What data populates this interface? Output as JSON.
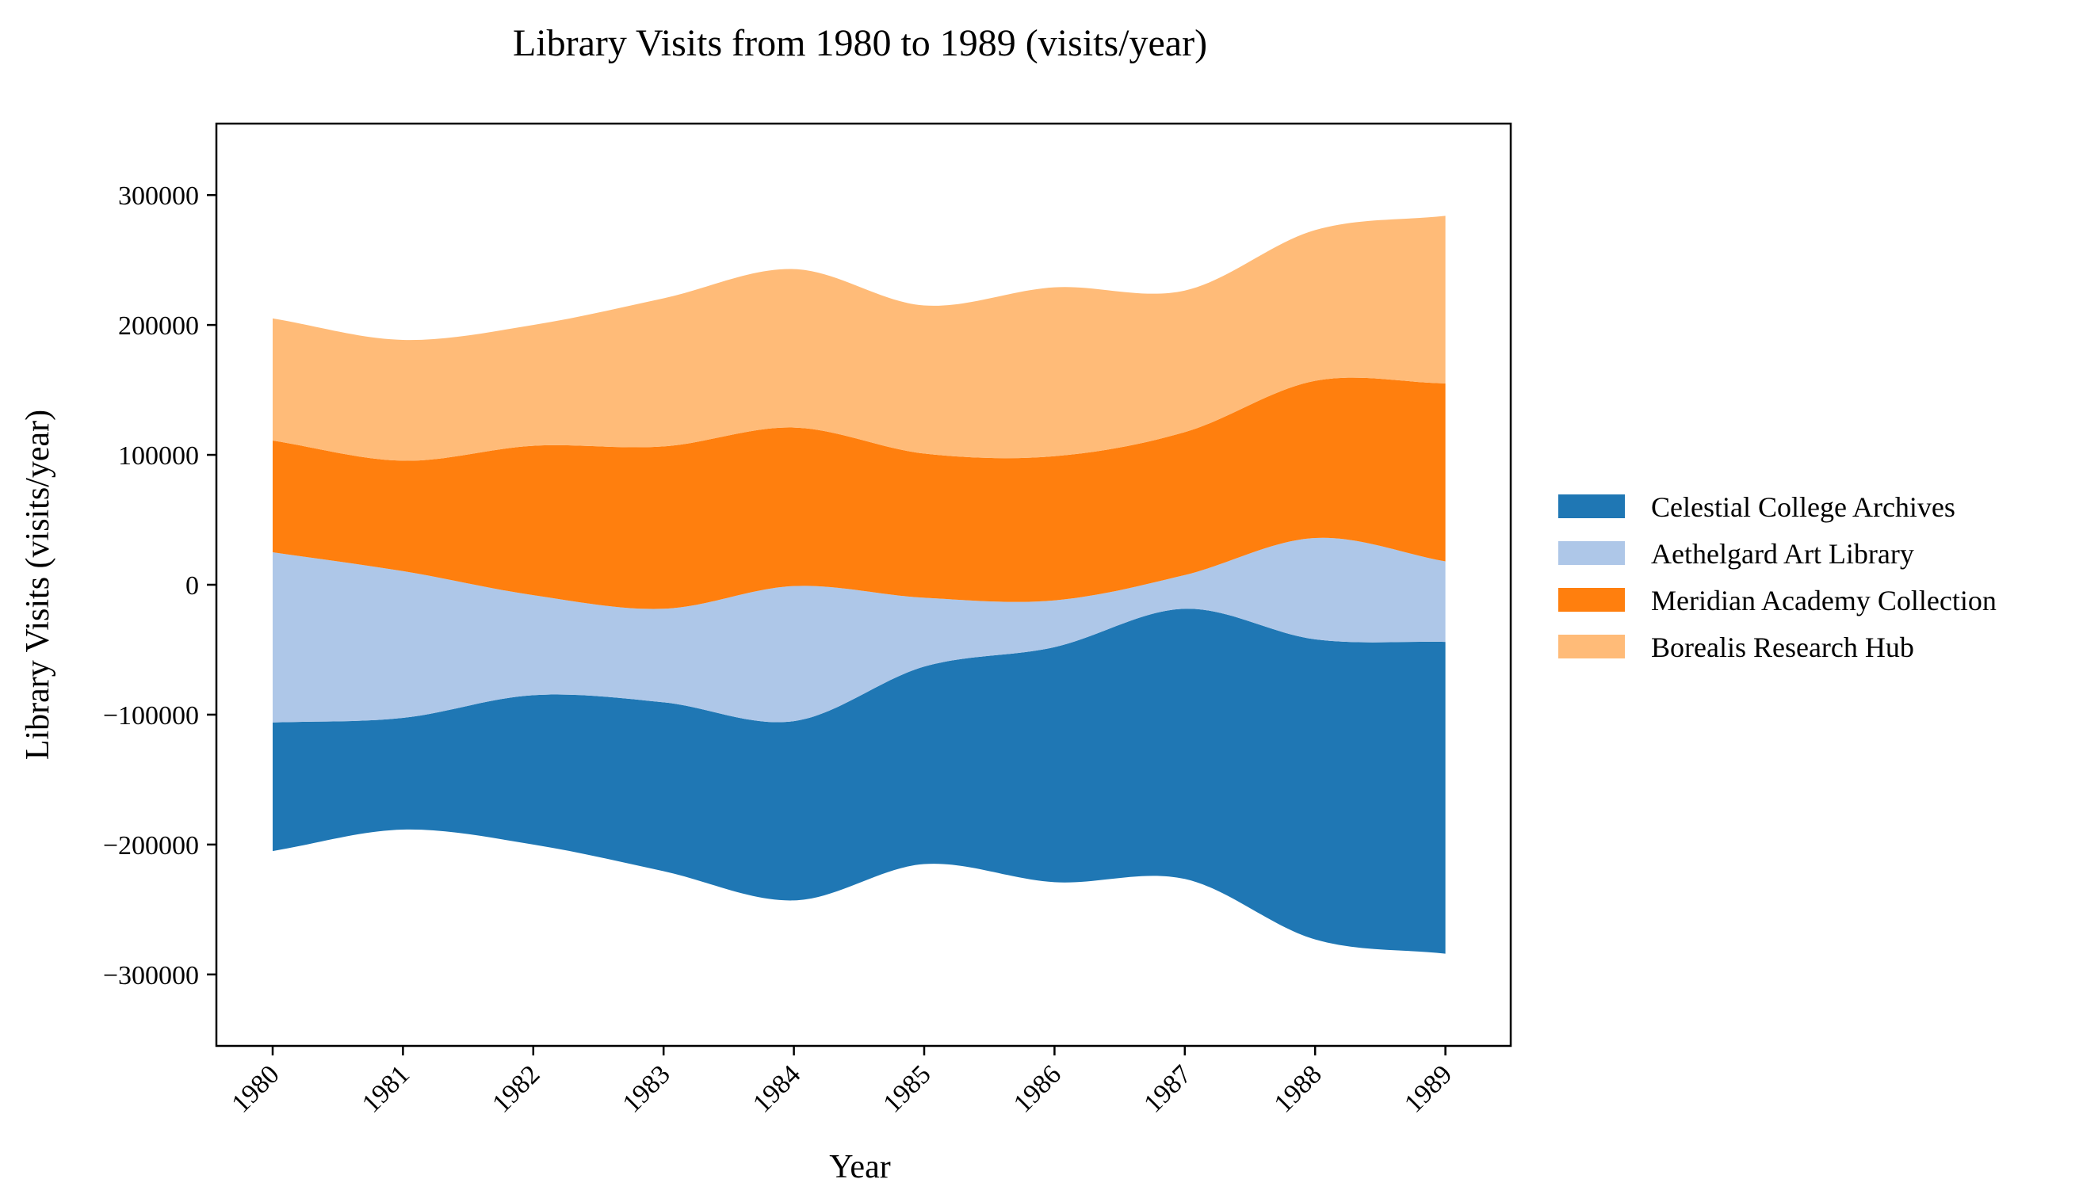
{
  "chart_data": {
    "type": "area",
    "variant": "streamgraph",
    "title": "Library Visits from 1980 to 1989 (visits/year)",
    "xlabel": "Year",
    "ylabel": "Library Visits (visits/year)",
    "x": [
      "1980",
      "1981",
      "1982",
      "1983",
      "1984",
      "1985",
      "1986",
      "1987",
      "1988",
      "1989"
    ],
    "ylim": [
      -355000,
      355000
    ],
    "yticks": [
      -300000,
      -200000,
      -100000,
      0,
      100000,
      200000,
      300000
    ],
    "ytick_labels": [
      "−300000",
      "−200000",
      "−100000",
      "0",
      "100000",
      "200000",
      "300000"
    ],
    "grid": false,
    "legend_position": "right",
    "series": [
      {
        "name": "Celestial College Archives",
        "color": "#1f77b4",
        "values": [
          99000,
          86000,
          115000,
          130000,
          138000,
          152000,
          181000,
          208000,
          231000,
          240000
        ]
      },
      {
        "name": "Aethelgard Art Library",
        "color": "#aec7e8",
        "values": [
          131000,
          113000,
          77000,
          72000,
          104000,
          53000,
          36000,
          26000,
          78000,
          62000
        ]
      },
      {
        "name": "Meridian Academy Collection",
        "color": "#ff7f0e",
        "values": [
          86000,
          85000,
          115000,
          125000,
          122000,
          111000,
          111000,
          110000,
          121000,
          137000
        ]
      },
      {
        "name": "Borealis Research Hub",
        "color": "#ffbb78",
        "values": [
          94000,
          93000,
          93000,
          114000,
          122000,
          114000,
          130000,
          109000,
          116000,
          129000
        ]
      }
    ]
  }
}
